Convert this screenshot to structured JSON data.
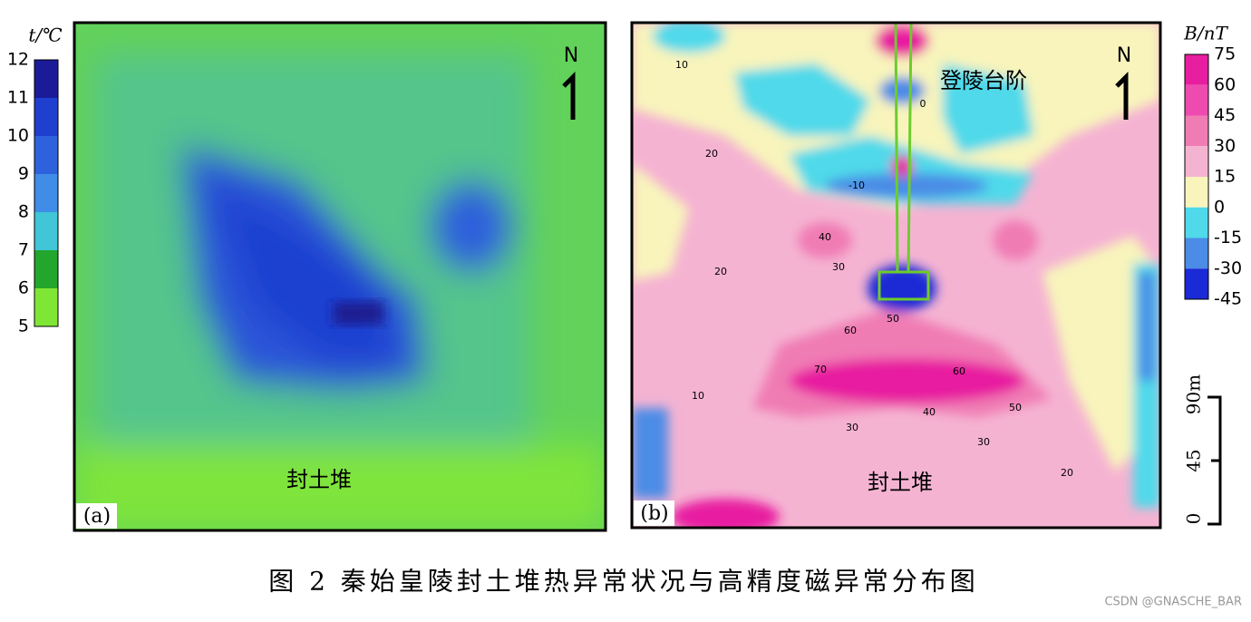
{
  "panel_a": {
    "label": "(a)",
    "north": "N",
    "annotation": "封土堆",
    "colorbar": {
      "title": "t/℃",
      "ticks": [
        12,
        11,
        10,
        9,
        8,
        7,
        6,
        5
      ],
      "colors": [
        "#1b1b9a",
        "#1f3fcf",
        "#2e62dd",
        "#3f8de6",
        "#40c6d6",
        "#23a62c",
        "#80e636"
      ]
    }
  },
  "panel_b": {
    "label": "(b)",
    "north": "N",
    "annotations": [
      "登陵台阶",
      "封土堆"
    ],
    "contour_labels": [
      "10",
      "20",
      "0",
      "-10",
      "40",
      "30",
      "20",
      "50",
      "60",
      "70",
      "60",
      "50",
      "40",
      "30",
      "20",
      "10",
      "30"
    ],
    "colorbar": {
      "title": "B/nT",
      "ticks": [
        75,
        60,
        45,
        30,
        15,
        0,
        -15,
        -30,
        -45
      ],
      "colors": [
        "#e81ea0",
        "#ee4bb0",
        "#f07cb4",
        "#f5b3d2",
        "#f8f4bc",
        "#4fd9ea",
        "#4b8ce6",
        "#1a2ad6"
      ]
    },
    "scale_bar": [
      "0",
      "45",
      "90m"
    ]
  },
  "caption": "图 2 秦始皇陵封土堆热异常状况与高精度磁异常分布图",
  "watermark": "CSDN @GNASCHE_BAR"
}
